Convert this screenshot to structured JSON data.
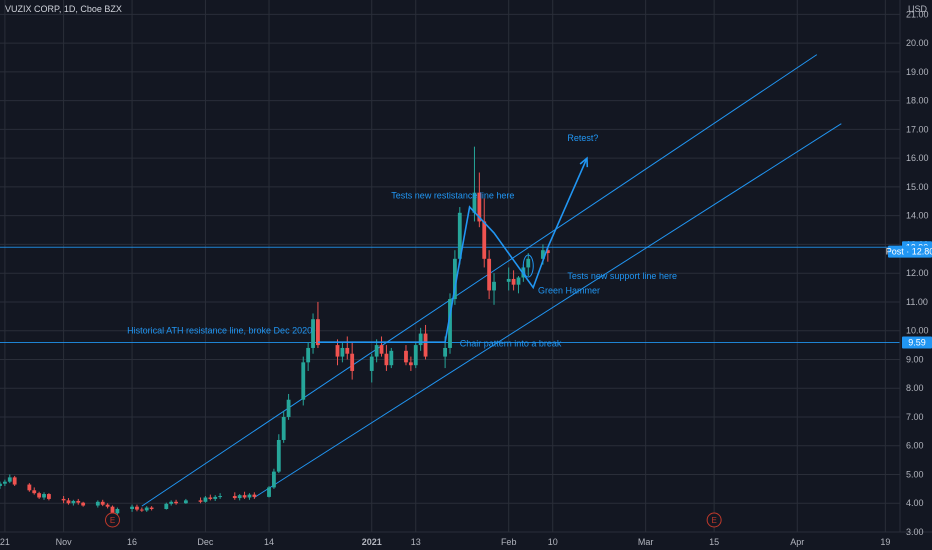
{
  "header": {
    "symbol": "VUZIX CORP, 1D, Cboe BZX"
  },
  "colors": {
    "background": "#131722",
    "up": "#26a69a",
    "down": "#ef5350",
    "annotation": "#2196f3",
    "grid": "#2a2e39",
    "text": "#b2b5be",
    "earnings": "#c0392b"
  },
  "chart_data": {
    "type": "candlestick",
    "currency": "USD",
    "ylim": [
      3.0,
      21.5
    ],
    "y_ticks": [
      "3.00",
      "4.00",
      "5.00",
      "6.00",
      "7.00",
      "8.00",
      "9.00",
      "10.00",
      "11.00",
      "12.00",
      "13.00",
      "14.00",
      "15.00",
      "16.00",
      "17.00",
      "18.00",
      "19.00",
      "20.00",
      "21.00"
    ],
    "x_range": [
      "2020-10-20",
      "2021-04-22"
    ],
    "x_ticks": [
      {
        "label": "21",
        "date": "2020-10-21"
      },
      {
        "label": "Nov",
        "date": "2020-11-02"
      },
      {
        "label": "16",
        "date": "2020-11-16"
      },
      {
        "label": "Dec",
        "date": "2020-12-01"
      },
      {
        "label": "14",
        "date": "2020-12-14"
      },
      {
        "label": "2021",
        "date": "2021-01-04"
      },
      {
        "label": "13",
        "date": "2021-01-13"
      },
      {
        "label": "Feb",
        "date": "2021-02-01"
      },
      {
        "label": "10",
        "date": "2021-02-10"
      },
      {
        "label": "Mar",
        "date": "2021-03-01"
      },
      {
        "label": "15",
        "date": "2021-03-15"
      },
      {
        "label": "Apr",
        "date": "2021-04-01"
      },
      {
        "label": "19",
        "date": "2021-04-19"
      }
    ],
    "candles": [
      [
        "2020-10-20",
        4.6,
        4.75,
        4.5,
        4.68
      ],
      [
        "2020-10-21",
        4.68,
        4.82,
        4.6,
        4.75
      ],
      [
        "2020-10-22",
        4.75,
        5.0,
        4.7,
        4.9
      ],
      [
        "2020-10-23",
        4.9,
        4.95,
        4.6,
        4.65
      ],
      [
        "2020-10-26",
        4.65,
        4.7,
        4.4,
        4.45
      ],
      [
        "2020-10-27",
        4.45,
        4.55,
        4.3,
        4.35
      ],
      [
        "2020-10-28",
        4.35,
        4.4,
        4.15,
        4.2
      ],
      [
        "2020-10-29",
        4.2,
        4.38,
        4.12,
        4.32
      ],
      [
        "2020-10-30",
        4.32,
        4.35,
        4.1,
        4.15
      ],
      [
        "2020-11-02",
        4.15,
        4.25,
        4.0,
        4.1
      ],
      [
        "2020-11-03",
        4.1,
        4.18,
        3.95,
        4.0
      ],
      [
        "2020-11-04",
        4.0,
        4.12,
        3.92,
        4.08
      ],
      [
        "2020-11-05",
        4.08,
        4.15,
        3.95,
        4.02
      ],
      [
        "2020-11-06",
        4.02,
        4.05,
        3.88,
        3.92
      ],
      [
        "2020-11-09",
        3.92,
        4.1,
        3.85,
        4.05
      ],
      [
        "2020-11-10",
        4.05,
        4.12,
        3.9,
        3.95
      ],
      [
        "2020-11-11",
        3.95,
        4.0,
        3.82,
        3.88
      ],
      [
        "2020-11-12",
        3.88,
        3.92,
        3.6,
        3.65
      ],
      [
        "2020-11-13",
        3.65,
        3.85,
        3.55,
        3.8
      ],
      [
        "2020-11-16",
        3.8,
        3.95,
        3.7,
        3.88
      ],
      [
        "2020-11-17",
        3.88,
        3.95,
        3.72,
        3.78
      ],
      [
        "2020-11-18",
        3.78,
        3.85,
        3.7,
        3.75
      ],
      [
        "2020-11-19",
        3.75,
        3.9,
        3.7,
        3.85
      ],
      [
        "2020-11-20",
        3.85,
        3.9,
        3.75,
        3.8
      ],
      [
        "2020-11-23",
        3.8,
        4.02,
        3.78,
        3.98
      ],
      [
        "2020-11-24",
        3.98,
        4.1,
        3.92,
        4.05
      ],
      [
        "2020-11-25",
        4.05,
        4.12,
        3.95,
        4.0
      ],
      [
        "2020-11-27",
        4.0,
        4.15,
        3.98,
        4.1
      ],
      [
        "2020-11-30",
        4.1,
        4.2,
        4.0,
        4.05
      ],
      [
        "2020-12-01",
        4.05,
        4.25,
        4.02,
        4.2
      ],
      [
        "2020-12-02",
        4.2,
        4.3,
        4.1,
        4.15
      ],
      [
        "2020-12-03",
        4.15,
        4.28,
        4.08,
        4.22
      ],
      [
        "2020-12-04",
        4.22,
        4.35,
        4.15,
        4.25
      ],
      [
        "2020-12-07",
        4.25,
        4.38,
        4.12,
        4.18
      ],
      [
        "2020-12-08",
        4.18,
        4.32,
        4.1,
        4.28
      ],
      [
        "2020-12-09",
        4.28,
        4.4,
        4.15,
        4.2
      ],
      [
        "2020-12-10",
        4.2,
        4.35,
        4.12,
        4.3
      ],
      [
        "2020-12-11",
        4.3,
        4.38,
        4.15,
        4.22
      ],
      [
        "2020-12-14",
        4.22,
        4.6,
        4.2,
        4.55
      ],
      [
        "2020-12-15",
        4.55,
        5.2,
        4.5,
        5.1
      ],
      [
        "2020-12-16",
        5.1,
        6.4,
        5.05,
        6.2
      ],
      [
        "2020-12-17",
        6.2,
        7.2,
        6.1,
        7.0
      ],
      [
        "2020-12-18",
        7.0,
        7.8,
        6.9,
        7.6
      ],
      [
        "2020-12-21",
        7.6,
        9.1,
        7.4,
        8.9
      ],
      [
        "2020-12-22",
        8.9,
        9.6,
        8.6,
        9.4
      ],
      [
        "2020-12-23",
        9.4,
        10.6,
        9.2,
        10.4
      ],
      [
        "2020-12-24",
        10.4,
        11.0,
        9.4,
        9.5
      ],
      [
        "2020-12-28",
        9.5,
        9.7,
        8.8,
        9.1
      ],
      [
        "2020-12-29",
        9.1,
        9.6,
        8.9,
        9.4
      ],
      [
        "2020-12-30",
        9.4,
        9.8,
        9.0,
        9.2
      ],
      [
        "2020-12-31",
        9.2,
        9.6,
        8.3,
        8.6
      ],
      [
        "2021-01-04",
        8.6,
        9.2,
        8.2,
        9.1
      ],
      [
        "2021-01-05",
        9.1,
        9.7,
        8.9,
        9.5
      ],
      [
        "2021-01-06",
        9.5,
        9.8,
        9.1,
        9.2
      ],
      [
        "2021-01-07",
        9.2,
        9.5,
        8.6,
        8.8
      ],
      [
        "2021-01-08",
        8.8,
        9.4,
        8.7,
        9.3
      ],
      [
        "2021-01-11",
        9.3,
        9.5,
        8.8,
        8.9
      ],
      [
        "2021-01-12",
        8.9,
        9.1,
        8.6,
        8.8
      ],
      [
        "2021-01-13",
        8.8,
        9.6,
        8.7,
        9.5
      ],
      [
        "2021-01-14",
        9.5,
        10.1,
        9.3,
        9.9
      ],
      [
        "2021-01-15",
        9.9,
        10.2,
        9.0,
        9.1
      ],
      [
        "2021-01-19",
        9.1,
        9.8,
        8.7,
        9.4
      ],
      [
        "2021-01-20",
        9.4,
        11.3,
        9.2,
        11.1
      ],
      [
        "2021-01-21",
        11.1,
        12.8,
        10.9,
        12.5
      ],
      [
        "2021-01-22",
        12.5,
        14.3,
        12.3,
        14.1
      ],
      [
        "2021-01-25",
        14.1,
        16.4,
        13.8,
        14.8
      ],
      [
        "2021-01-26",
        14.8,
        15.5,
        13.6,
        13.8
      ],
      [
        "2021-01-27",
        13.8,
        14.6,
        12.2,
        12.5
      ],
      [
        "2021-01-28",
        12.5,
        12.8,
        11.1,
        11.4
      ],
      [
        "2021-01-29",
        11.4,
        12.0,
        10.9,
        11.7
      ],
      [
        "2021-02-01",
        11.7,
        12.2,
        11.4,
        11.8
      ],
      [
        "2021-02-02",
        11.8,
        12.1,
        11.4,
        11.6
      ],
      [
        "2021-02-03",
        11.6,
        11.9,
        11.3,
        11.85
      ],
      [
        "2021-02-04",
        11.85,
        12.3,
        11.7,
        12.2
      ],
      [
        "2021-02-05",
        12.2,
        12.7,
        11.9,
        12.5
      ],
      [
        "2021-02-08",
        12.5,
        13.0,
        12.3,
        12.8
      ],
      [
        "2021-02-09",
        12.8,
        12.9,
        12.4,
        12.7
      ]
    ],
    "annotations": [
      {
        "text": "Tests new restistance line here",
        "date": "2021-01-08",
        "price": 14.6
      },
      {
        "text": "Retest?",
        "date": "2021-02-13",
        "price": 16.6
      },
      {
        "text": "Tests new support line here",
        "date": "2021-02-13",
        "price": 11.8
      },
      {
        "text": "Green Hammer",
        "date": "2021-02-07",
        "price": 11.3
      },
      {
        "text": "Historical ATH resistance line, broke Dec 2020",
        "date": "2020-11-15",
        "price": 9.9
      },
      {
        "text": "Chair pattern into a break",
        "date": "2021-01-22",
        "price": 9.45
      }
    ],
    "price_labels": [
      {
        "text": "12.90",
        "price": 12.9,
        "style": "line"
      },
      {
        "text": "Post · 12.80",
        "price": 12.75,
        "style": "post"
      },
      {
        "text": "9.59",
        "price": 9.59,
        "style": "line"
      }
    ],
    "horizontal_lines": [
      12.9,
      9.59
    ],
    "channel_lines": [
      {
        "from": [
          "2020-11-18",
          3.9
        ],
        "to": [
          "2021-04-05",
          19.6
        ]
      },
      {
        "from": [
          "2020-12-11",
          4.2
        ],
        "to": [
          "2021-04-10",
          17.2
        ]
      }
    ],
    "pattern_path": [
      [
        "2020-12-24",
        9.6
      ],
      [
        "2021-01-19",
        9.6
      ],
      [
        "2021-01-24",
        14.3
      ],
      [
        "2021-01-29",
        13.4
      ],
      [
        "2021-02-06",
        11.5
      ],
      [
        "2021-02-09",
        12.9
      ]
    ],
    "retest_arrow": {
      "from": [
        "2021-02-09",
        12.9
      ],
      "to": [
        "2021-02-17",
        16.0
      ]
    },
    "hammer_mark": {
      "date": "2021-02-05",
      "price": 12.25
    },
    "earnings": [
      {
        "label": "E",
        "date": "2020-11-12"
      },
      {
        "label": "E",
        "date": "2021-03-15"
      }
    ]
  }
}
